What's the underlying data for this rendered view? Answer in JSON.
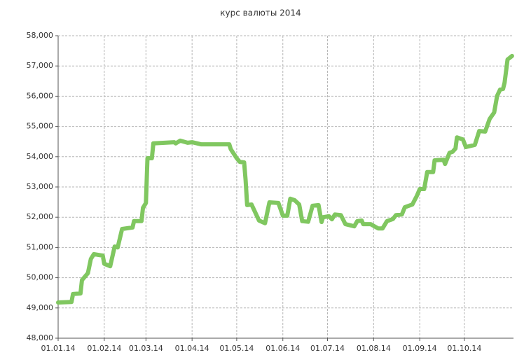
{
  "chart_data": {
    "type": "line",
    "title": "курс валюты 2014",
    "x": [
      "01.01.14",
      "10.01.14",
      "11.01.14",
      "16.01.14",
      "17.01.14",
      "21.01.14",
      "23.01.14",
      "25.01.14",
      "31.01.14",
      "01.02.14",
      "05.02.14",
      "08.02.14",
      "10.02.14",
      "13.02.14",
      "20.02.14",
      "21.02.14",
      "26.02.14",
      "27.02.14",
      "01.03.14",
      "02.03.14",
      "05.03.14",
      "06.03.14",
      "20.03.14",
      "21.03.14",
      "24.03.14",
      "29.03.14",
      "01.04.14",
      "07.04.14",
      "26.04.14",
      "27.04.14",
      "01.05.14",
      "03.05.14",
      "06.05.14",
      "07.05.14",
      "08.05.14",
      "11.05.14",
      "16.05.14",
      "20.05.14",
      "23.05.14",
      "29.05.14",
      "01.06.14",
      "04.06.14",
      "06.06.14",
      "09.06.14",
      "12.06.14",
      "14.06.14",
      "18.06.14",
      "21.06.14",
      "25.06.14",
      "27.06.14",
      "28.06.14",
      "02.07.14",
      "04.07.14",
      "06.07.14",
      "10.07.14",
      "13.07.14",
      "19.07.14",
      "21.07.14",
      "24.07.14",
      "25.07.14",
      "30.07.14",
      "04.08.14",
      "07.08.14",
      "10.08.14",
      "14.08.14",
      "16.08.14",
      "20.08.14",
      "22.08.14",
      "27.08.14",
      "30.08.14",
      "01.09.14",
      "04.09.14",
      "06.09.14",
      "10.09.14",
      "11.09.14",
      "17.09.14",
      "18.09.14",
      "21.09.14",
      "23.09.14",
      "25.09.14",
      "26.09.14",
      "30.09.14",
      "02.10.14",
      "08.10.14",
      "11.10.14",
      "15.10.14",
      "18.10.14",
      "21.10.14",
      "23.10.14",
      "25.10.14",
      "27.10.14",
      "28.10.14",
      "30.10.14",
      "02.11.14"
    ],
    "series": [
      {
        "name": "курс",
        "color": "#80c760",
        "values": [
          49180,
          49200,
          49460,
          49480,
          49920,
          50150,
          50620,
          50780,
          50730,
          50460,
          50380,
          51030,
          51000,
          51610,
          51660,
          51870,
          51870,
          52310,
          52470,
          53950,
          53950,
          54440,
          54480,
          54440,
          54530,
          54460,
          54480,
          54410,
          54410,
          54250,
          53950,
          53830,
          53810,
          53230,
          52400,
          52420,
          51890,
          51800,
          52490,
          52470,
          52050,
          52050,
          52610,
          52560,
          52420,
          51870,
          51850,
          52380,
          52400,
          51840,
          52000,
          52030,
          51930,
          52090,
          52070,
          51770,
          51700,
          51870,
          51890,
          51770,
          51770,
          51630,
          51630,
          51870,
          51940,
          52070,
          52090,
          52330,
          52420,
          52700,
          52930,
          52930,
          53490,
          53490,
          53880,
          53900,
          53760,
          54130,
          54160,
          54270,
          54640,
          54570,
          54320,
          54390,
          54850,
          54830,
          55250,
          55460,
          56010,
          56220,
          56240,
          56450,
          57210,
          57330
        ]
      }
    ],
    "xlim": [
      "01.01.14",
      "03.11.14"
    ],
    "xticks": [
      "01.01.14",
      "01.02.14",
      "01.03.14",
      "01.04.14",
      "01.05.14",
      "01.06.14",
      "01.07.14",
      "01.08.14",
      "01.09.14",
      "01.10.14"
    ],
    "ylim": [
      48000,
      58000
    ],
    "yticks": [
      {
        "value": 48000,
        "label": "48,000"
      },
      {
        "value": 49000,
        "label": "49,000"
      },
      {
        "value": 50000,
        "label": "50,000"
      },
      {
        "value": 51000,
        "label": "51,000"
      },
      {
        "value": 52000,
        "label": "52,000"
      },
      {
        "value": 53000,
        "label": "53,000"
      },
      {
        "value": 54000,
        "label": "54,000"
      },
      {
        "value": 55000,
        "label": "55,000"
      },
      {
        "value": 56000,
        "label": "56,000"
      },
      {
        "value": 57000,
        "label": "57,000"
      },
      {
        "value": 58000,
        "label": "58,000"
      }
    ],
    "grid": true
  }
}
